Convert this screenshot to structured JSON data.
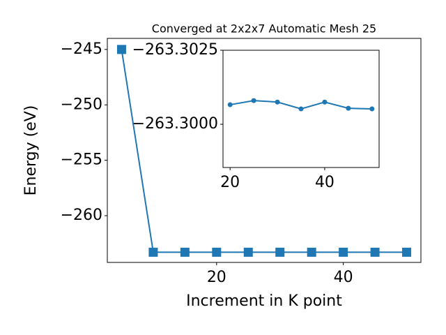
{
  "chart_data": [
    {
      "type": "line",
      "title": "Converged at 2x2x7 Automatic Mesh 25",
      "x_label": "Increment in K point",
      "y_label": "Energy (eV)",
      "x": [
        5,
        10,
        15,
        20,
        25,
        30,
        35,
        40,
        45,
        50
      ],
      "series": [
        {
          "color": "#1f77b4",
          "marker": "square",
          "values": [
            -245,
            -263.3,
            -263.3,
            -263.3,
            -263.3,
            -263.3,
            -263.3,
            -263.3,
            -263.3,
            -263.3
          ]
        }
      ],
      "xlim": [
        2.75,
        52.25
      ],
      "ylim": [
        -264.22,
        -244.0
      ],
      "xticks": [
        20,
        40
      ],
      "yticks": [
        {
          "value": -260,
          "label": "−260"
        },
        {
          "value": -255,
          "label": "−255"
        },
        {
          "value": -250,
          "label": "−250"
        },
        {
          "value": -245,
          "label": "−245"
        }
      ]
    },
    {
      "type": "line",
      "inset": true,
      "x": [
        20,
        25,
        30,
        35,
        40,
        45,
        50
      ],
      "series": [
        {
          "color": "#1f77b4",
          "marker": "circle",
          "values": [
            -263.30066,
            -263.3008,
            -263.30075,
            -263.30052,
            -263.30075,
            -263.30054,
            -263.30052
          ]
        }
      ],
      "xlim": [
        18.5,
        51.5
      ],
      "ylim": [
        -263.29854,
        -263.3025
      ],
      "xticks": [
        20,
        40
      ],
      "yticks": [
        {
          "value": -263.3,
          "label": "−263.3000"
        },
        {
          "value": -263.3025,
          "label": "−263.3025"
        }
      ]
    }
  ]
}
